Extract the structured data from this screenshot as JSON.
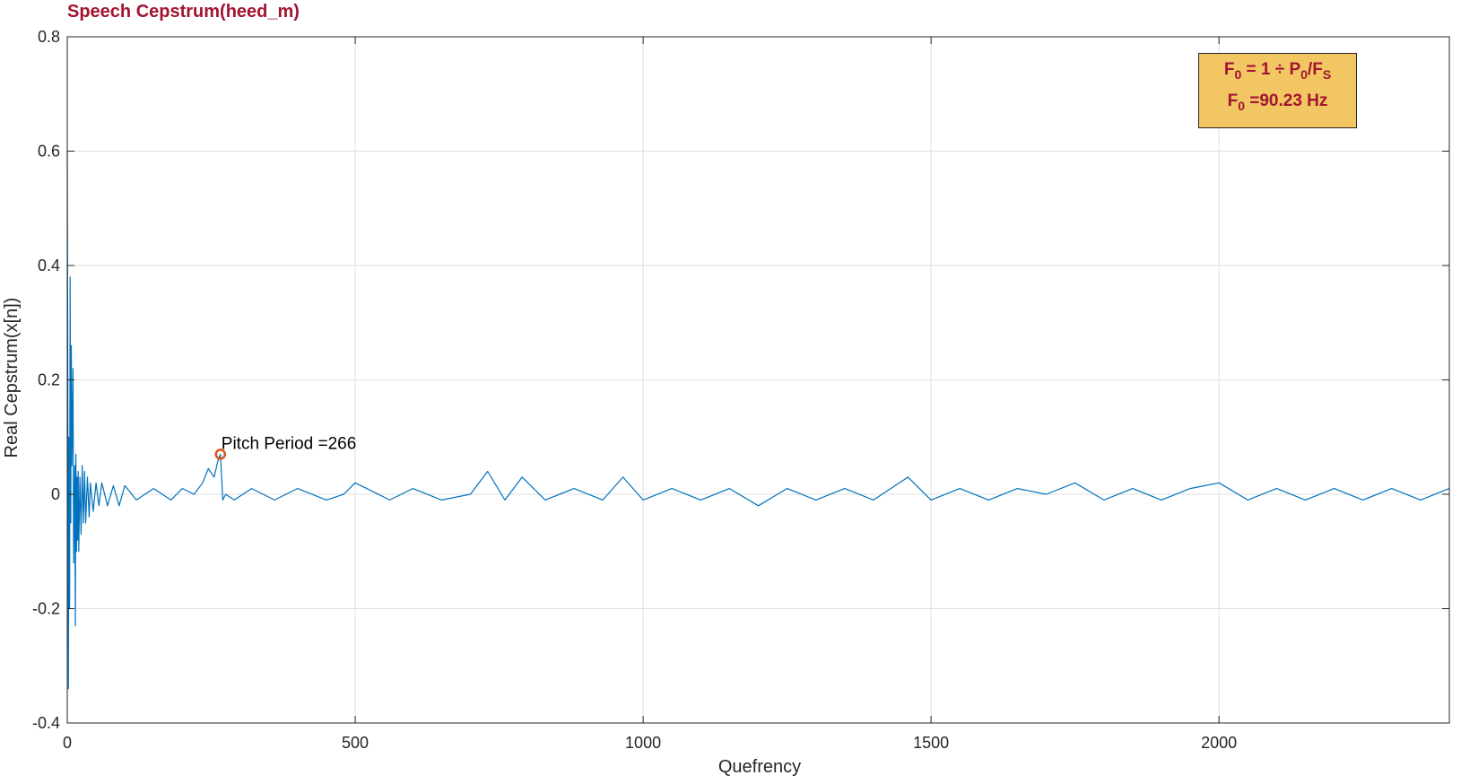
{
  "chart_data": {
    "type": "line",
    "title": "Speech Cepstrum(heed_m)",
    "xlabel": "Quefrency",
    "ylabel": "Real Cepstrum(x[n])",
    "xlim": [
      0,
      2400
    ],
    "ylim": [
      -0.4,
      0.8
    ],
    "xticks": [
      0,
      500,
      1000,
      1500,
      2000
    ],
    "xtick_labels": [
      "0",
      "500",
      "1000",
      "1500",
      "2000"
    ],
    "yticks": [
      -0.4,
      -0.2,
      0,
      0.2,
      0.4,
      0.6,
      0.8
    ],
    "ytick_labels": [
      "-0.4",
      "-0.2",
      "0",
      "0.2",
      "0.4",
      "0.6",
      "0.8"
    ],
    "grid": true,
    "line_color": "#0072bd",
    "series": [
      {
        "name": "",
        "x": [
          0,
          1,
          2,
          3,
          4,
          5,
          6,
          7,
          8,
          9,
          10,
          11,
          12,
          13,
          14,
          15,
          16,
          17,
          18,
          19,
          20,
          22,
          24,
          26,
          28,
          30,
          32,
          35,
          38,
          40,
          45,
          50,
          55,
          60,
          70,
          80,
          90,
          100,
          120,
          150,
          180,
          200,
          220,
          235,
          245,
          255,
          262,
          266,
          270,
          275,
          290,
          320,
          360,
          400,
          450,
          480,
          500,
          520,
          560,
          600,
          650,
          700,
          730,
          760,
          790,
          830,
          880,
          930,
          965,
          1000,
          1050,
          1100,
          1150,
          1200,
          1250,
          1300,
          1350,
          1400,
          1460,
          1500,
          1550,
          1600,
          1650,
          1700,
          1750,
          1800,
          1850,
          1900,
          1950,
          2000,
          2050,
          2100,
          2150,
          2200,
          2250,
          2300,
          2350,
          2400
        ],
        "y": [
          0.6,
          0.2,
          -0.34,
          0.1,
          -0.2,
          0.38,
          -0.05,
          0.26,
          0.05,
          0.13,
          0.22,
          -0.12,
          -0.02,
          0.05,
          -0.23,
          0.07,
          -0.1,
          0.03,
          -0.08,
          0.04,
          -0.1,
          0.03,
          -0.07,
          0.05,
          -0.05,
          0.04,
          -0.05,
          0.03,
          -0.04,
          0.02,
          -0.03,
          0.02,
          -0.02,
          0.02,
          -0.02,
          0.015,
          -0.02,
          0.015,
          -0.01,
          0.01,
          -0.01,
          0.01,
          0.0,
          0.02,
          0.045,
          0.03,
          0.06,
          0.07,
          -0.01,
          0.0,
          -0.01,
          0.01,
          -0.01,
          0.01,
          -0.01,
          0.0,
          0.02,
          0.01,
          -0.01,
          0.01,
          -0.01,
          0.0,
          0.04,
          -0.01,
          0.03,
          -0.01,
          0.01,
          -0.01,
          0.03,
          -0.01,
          0.01,
          -0.01,
          0.01,
          -0.02,
          0.01,
          -0.01,
          0.01,
          -0.01,
          0.03,
          -0.01,
          0.01,
          -0.01,
          0.01,
          0.0,
          0.02,
          -0.01,
          0.01,
          -0.01,
          0.01,
          0.02,
          -0.01,
          0.01,
          -0.01,
          0.01,
          -0.01,
          0.01,
          -0.01,
          0.01
        ]
      }
    ],
    "annotations": [
      {
        "text": "Pitch Period =266",
        "x": 266,
        "y": 0.07,
        "marker_color": "#d95319"
      }
    ],
    "info_box": {
      "line1": {
        "a": "F",
        "a_sub": "0",
        "b": " = 1 ÷ P",
        "b_sub": "0",
        "c": "/F",
        "c_sub": "S"
      },
      "line2": {
        "a": "F",
        "a_sub": "0",
        "b": " =90.23 Hz"
      },
      "background": "#f2c663",
      "text_color": "#a2142f"
    }
  }
}
